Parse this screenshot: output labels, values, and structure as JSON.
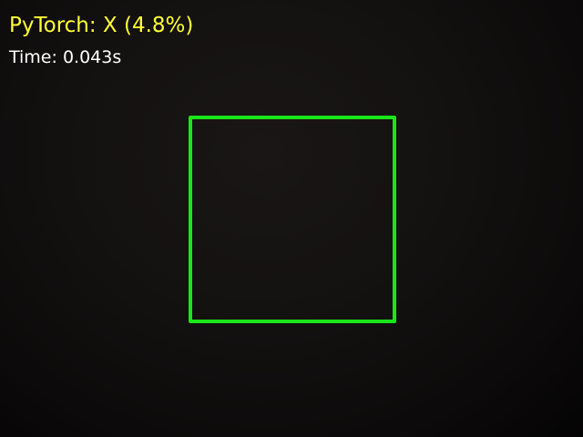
{
  "overlay": {
    "prediction_text": "PyTorch: X (4.8%)",
    "prediction_color": "#ffff33",
    "timing_text": "Time: 0.043s",
    "timing_color": "#ffffff"
  },
  "roi": {
    "color": "#19e619"
  },
  "camera": {
    "background_color": "#141111"
  }
}
